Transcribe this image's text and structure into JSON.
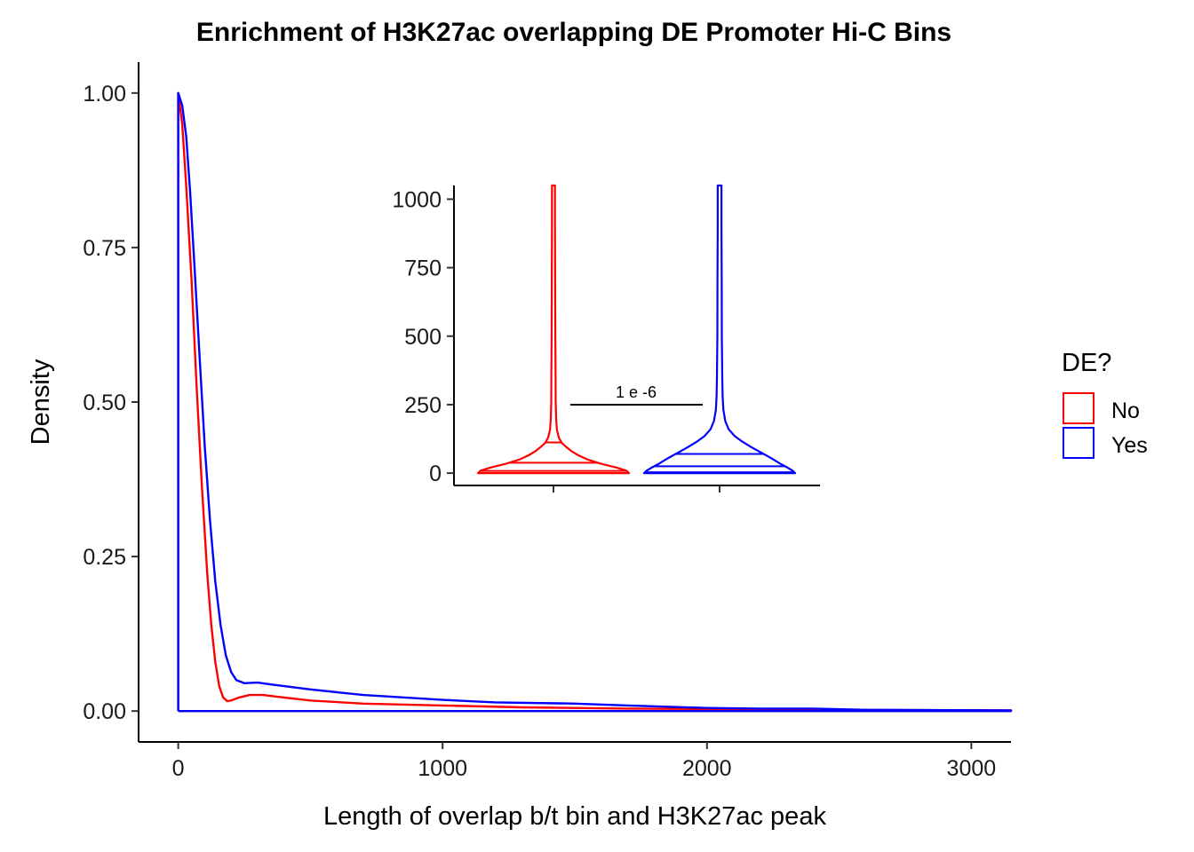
{
  "chart_data": [
    {
      "type": "line",
      "title": "Enrichment of H3K27ac overlapping DE Promoter Hi-C Bins",
      "xlabel": "Length of overlap b/t bin and H3K27ac peak",
      "ylabel": "Density",
      "xlim": [
        -150,
        3150
      ],
      "ylim": [
        -0.05,
        1.05
      ],
      "x_ticks": [
        "0",
        "1000",
        "2000",
        "3000"
      ],
      "y_ticks": [
        "0.00",
        "0.25",
        "0.50",
        "0.75",
        "1.00"
      ],
      "x_tick_values": [
        0,
        1000,
        2000,
        3000
      ],
      "y_tick_values": [
        0,
        0.25,
        0.5,
        0.75,
        1.0
      ],
      "grid": false,
      "legend": {
        "title": "DE?",
        "position": "right",
        "entries": [
          {
            "label": "No",
            "color": "#ff0000"
          },
          {
            "label": "Yes",
            "color": "#0000ff"
          }
        ]
      },
      "series": [
        {
          "name": "No",
          "color": "#ff0000",
          "x": [
            0,
            0,
            15,
            30,
            50,
            70,
            90,
            110,
            125,
            140,
            155,
            170,
            185,
            200,
            230,
            270,
            320,
            400,
            500,
            700,
            1000,
            1300,
            1700,
            2100,
            2500,
            3150
          ],
          "y": [
            0,
            1.0,
            0.95,
            0.85,
            0.7,
            0.52,
            0.36,
            0.22,
            0.14,
            0.08,
            0.04,
            0.022,
            0.016,
            0.017,
            0.022,
            0.026,
            0.026,
            0.022,
            0.017,
            0.012,
            0.009,
            0.006,
            0.004,
            0.003,
            0.002,
            0.001
          ]
        },
        {
          "name": "Yes",
          "color": "#0000ff",
          "x": [
            0,
            0,
            15,
            30,
            45,
            60,
            80,
            100,
            120,
            140,
            160,
            180,
            200,
            220,
            250,
            300,
            350,
            500,
            700,
            1000,
            1200,
            1500,
            1700,
            2000,
            2200,
            2400,
            2600,
            3150
          ],
          "y": [
            0,
            1.0,
            0.98,
            0.93,
            0.84,
            0.73,
            0.58,
            0.43,
            0.31,
            0.21,
            0.14,
            0.09,
            0.063,
            0.05,
            0.045,
            0.046,
            0.043,
            0.035,
            0.026,
            0.018,
            0.014,
            0.012,
            0.009,
            0.005,
            0.004,
            0.004,
            0.002,
            0.001
          ]
        }
      ]
    },
    {
      "type": "violin",
      "title": "",
      "xlabel": "",
      "ylabel": "",
      "ylim": [
        -45,
        1050
      ],
      "y_ticks": [
        "0",
        "250",
        "500",
        "750",
        "1000"
      ],
      "y_tick_values": [
        0,
        250,
        500,
        750,
        1000
      ],
      "categories": [
        "No",
        "Yes"
      ],
      "annotation": {
        "text": "1 e -6",
        "y": 250
      },
      "series": [
        {
          "name": "No",
          "color": "#ff0000",
          "profile_y": [
            0,
            8,
            20,
            35,
            50,
            65,
            80,
            95,
            110,
            130,
            160,
            200,
            260,
            350,
            500,
            700,
            900,
            1050
          ],
          "profile_w": [
            1.0,
            0.97,
            0.84,
            0.62,
            0.45,
            0.33,
            0.24,
            0.17,
            0.11,
            0.07,
            0.045,
            0.035,
            0.03,
            0.028,
            0.025,
            0.022,
            0.02,
            0.02
          ],
          "quantiles": [
            8,
            38,
            112
          ]
        },
        {
          "name": "Yes",
          "color": "#0000ff",
          "profile_y": [
            0,
            8,
            20,
            35,
            55,
            75,
            95,
            115,
            135,
            160,
            190,
            230,
            280,
            350,
            500,
            700,
            900,
            1050
          ],
          "profile_w": [
            1.0,
            0.97,
            0.9,
            0.8,
            0.68,
            0.55,
            0.42,
            0.3,
            0.2,
            0.12,
            0.075,
            0.05,
            0.04,
            0.035,
            0.03,
            0.028,
            0.025,
            0.025
          ],
          "quantiles": [
            3,
            25,
            70
          ]
        }
      ]
    }
  ]
}
